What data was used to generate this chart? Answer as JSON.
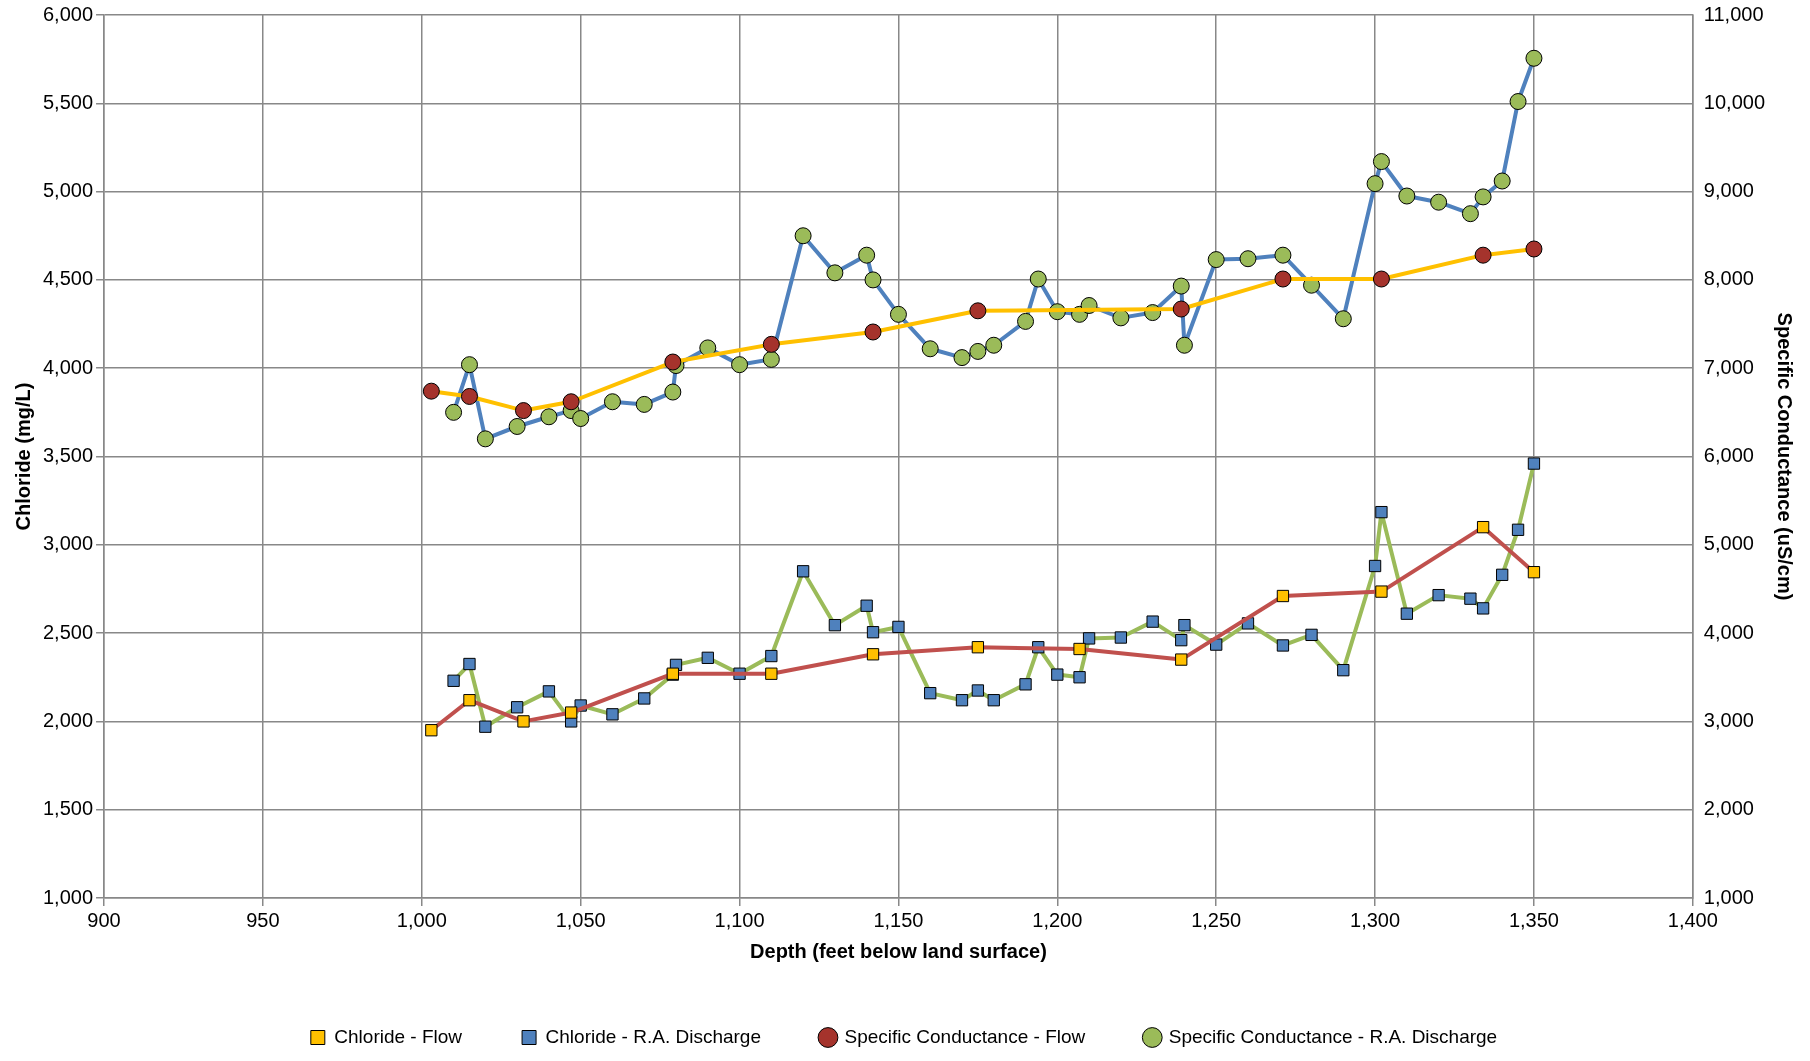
{
  "chart_data": {
    "type": "line",
    "xlabel": "Depth (feet below land surface)",
    "ylabel": "Chloride (mg/L)",
    "y2label": "Specific Conductance (uS/cm)",
    "xlim": [
      900,
      1400
    ],
    "xticks": [
      {
        "value": 900,
        "label": "900"
      },
      {
        "value": 950,
        "label": "950"
      },
      {
        "value": 1000,
        "label": "1,000"
      },
      {
        "value": 1050,
        "label": "1,050"
      },
      {
        "value": 1100,
        "label": "1,100"
      },
      {
        "value": 1150,
        "label": "1,150"
      },
      {
        "value": 1200,
        "label": "1,200"
      },
      {
        "value": 1250,
        "label": "1,250"
      },
      {
        "value": 1300,
        "label": "1,300"
      },
      {
        "value": 1350,
        "label": "1,350"
      },
      {
        "value": 1400,
        "label": "1,400"
      }
    ],
    "ylim": [
      1000,
      6000
    ],
    "yticks": [
      {
        "value": 1000,
        "label": "1,000"
      },
      {
        "value": 1500,
        "label": "1,500"
      },
      {
        "value": 2000,
        "label": "2,000"
      },
      {
        "value": 2500,
        "label": "2,500"
      },
      {
        "value": 3000,
        "label": "3,000"
      },
      {
        "value": 3500,
        "label": "3,500"
      },
      {
        "value": 4000,
        "label": "4,000"
      },
      {
        "value": 4500,
        "label": "4,500"
      },
      {
        "value": 5000,
        "label": "5,000"
      },
      {
        "value": 5500,
        "label": "5,500"
      },
      {
        "value": 6000,
        "label": "6,000"
      }
    ],
    "y2lim": [
      1000,
      11000
    ],
    "y2ticks": [
      {
        "value": 1000,
        "label": "1,000"
      },
      {
        "value": 2000,
        "label": "2,000"
      },
      {
        "value": 3000,
        "label": "3,000"
      },
      {
        "value": 4000,
        "label": "4,000"
      },
      {
        "value": 5000,
        "label": "5,000"
      },
      {
        "value": 6000,
        "label": "6,000"
      },
      {
        "value": 7000,
        "label": "7,000"
      },
      {
        "value": 8000,
        "label": "8,000"
      },
      {
        "value": 9000,
        "label": "9,000"
      },
      {
        "value": 10000,
        "label": "10,000"
      },
      {
        "value": 11000,
        "label": "11,000"
      }
    ],
    "grid": true,
    "legend": "bottom",
    "line_style": "solid",
    "series": [
      {
        "name": "Chloride - Flow",
        "color": "#c0504d",
        "colors": [
          "#ffc000",
          "#ffc000",
          "#ffc000",
          "#ffc000",
          "#ffc000",
          "#ffc000",
          "#ffc000",
          "#ffc000",
          "#ffc000",
          "#ffc000",
          "#ffc000",
          "#ffc000",
          "#ffc000",
          "#ffc000"
        ],
        "marker": "square",
        "x": [
          1003,
          1015,
          1032,
          1047,
          1079,
          1110,
          1142,
          1175,
          1207,
          1239,
          1271,
          1302,
          1334,
          1350
        ],
        "values": [
          1950,
          2120,
          2000,
          2050,
          2270,
          2270,
          2380,
          2420,
          2410,
          2350,
          2710,
          2735,
          3100,
          2845
        ]
      },
      {
        "name": "Chloride - R.A. Discharge",
        "color": "#9bbb59",
        "colors": [
          "#4f81bd",
          "#4f81bd",
          "#4f81bd",
          "#4f81bd",
          "#4f81bd",
          "#4f81bd",
          "#4f81bd",
          "#4f81bd",
          "#4f81bd",
          "#4f81bd",
          "#4f81bd",
          "#4f81bd",
          "#4f81bd",
          "#4f81bd",
          "#4f81bd",
          "#4f81bd",
          "#4f81bd",
          "#4f81bd",
          "#4f81bd",
          "#4f81bd",
          "#4f81bd",
          "#4f81bd",
          "#4f81bd",
          "#4f81bd",
          "#4f81bd",
          "#4f81bd",
          "#4f81bd",
          "#4f81bd",
          "#4f81bd",
          "#4f81bd",
          "#4f81bd",
          "#4f81bd",
          "#4f81bd",
          "#4f81bd",
          "#4f81bd",
          "#4f81bd",
          "#4f81bd",
          "#4f81bd",
          "#4f81bd",
          "#4f81bd",
          "#4f81bd",
          "#4f81bd",
          "#4f81bd",
          "#4f81bd",
          "#4f81bd",
          "#4f81bd"
        ],
        "marker": "square",
        "x": [
          1010,
          1015,
          1020,
          1030,
          1040,
          1047,
          1050,
          1060,
          1070,
          1079,
          1080,
          1090,
          1100,
          1110,
          1120,
          1130,
          1140,
          1142,
          1150,
          1160,
          1170,
          1175,
          1180,
          1190,
          1194,
          1200,
          1207,
          1210,
          1220,
          1230,
          1239,
          1240,
          1250,
          1260,
          1271,
          1280,
          1290,
          1300,
          1302,
          1310,
          1320,
          1330,
          1334,
          1340,
          1345,
          1350
        ],
        "values": [
          2230,
          2325,
          1970,
          2080,
          2170,
          2000,
          2090,
          2040,
          2130,
          2265,
          2320,
          2360,
          2270,
          2370,
          2850,
          2545,
          2655,
          2505,
          2535,
          2160,
          2120,
          2175,
          2120,
          2210,
          2420,
          2265,
          2250,
          2470,
          2475,
          2565,
          2460,
          2545,
          2435,
          2555,
          2430,
          2490,
          2290,
          2880,
          3185,
          2610,
          2715,
          2695,
          2640,
          2830,
          3085,
          3460
        ]
      },
      {
        "name": "Specific Conductance - Flow",
        "color": "#ffc000",
        "colors": [
          "#a5332c",
          "#a5332c",
          "#a5332c",
          "#a5332c",
          "#a5332c",
          "#a5332c",
          "#a5332c",
          "#a5332c",
          "#a5332c",
          "#a5332c",
          "#a5332c",
          "#a5332c",
          "#a5332c"
        ],
        "marker": "circle",
        "axis": "y2",
        "x": [
          1003,
          1015,
          1032,
          1047,
          1079,
          1110,
          1142,
          1175,
          1239,
          1271,
          1302,
          1334,
          1350
        ],
        "values": [
          6740,
          6680,
          6520,
          6620,
          7070,
          7270,
          7410,
          7650,
          7670,
          8010,
          8010,
          8280,
          8350
        ]
      },
      {
        "name": "Specific Conductance - R.A. Discharge",
        "color": "#4f81bd",
        "colors": [
          "#9bbb59",
          "#9bbb59",
          "#9bbb59",
          "#9bbb59",
          "#9bbb59",
          "#9bbb59",
          "#9bbb59",
          "#9bbb59",
          "#9bbb59",
          "#9bbb59",
          "#9bbb59",
          "#9bbb59",
          "#9bbb59",
          "#9bbb59",
          "#9bbb59",
          "#9bbb59",
          "#9bbb59",
          "#9bbb59",
          "#9bbb59",
          "#9bbb59",
          "#9bbb59",
          "#9bbb59",
          "#9bbb59",
          "#9bbb59",
          "#9bbb59",
          "#9bbb59",
          "#9bbb59",
          "#9bbb59",
          "#9bbb59",
          "#9bbb59",
          "#9bbb59",
          "#9bbb59",
          "#9bbb59",
          "#9bbb59",
          "#9bbb59",
          "#9bbb59",
          "#9bbb59",
          "#9bbb59",
          "#9bbb59",
          "#9bbb59",
          "#9bbb59",
          "#9bbb59",
          "#9bbb59",
          "#9bbb59",
          "#9bbb59",
          "#9bbb59"
        ],
        "marker": "circle",
        "axis": "y2",
        "x": [
          1010,
          1015,
          1020,
          1030,
          1040,
          1047,
          1050,
          1060,
          1070,
          1079,
          1080,
          1090,
          1100,
          1110,
          1120,
          1130,
          1140,
          1142,
          1150,
          1160,
          1170,
          1175,
          1180,
          1190,
          1194,
          1200,
          1207,
          1210,
          1220,
          1230,
          1239,
          1240,
          1250,
          1260,
          1271,
          1280,
          1290,
          1300,
          1302,
          1310,
          1320,
          1330,
          1334,
          1340,
          1345,
          1350
        ],
        "values": [
          6500,
          7040,
          6200,
          6340,
          6450,
          6520,
          6430,
          6620,
          6590,
          6730,
          7030,
          7230,
          7040,
          7100,
          8500,
          8080,
          8280,
          8000,
          7610,
          7220,
          7120,
          7190,
          7260,
          7530,
          8010,
          7640,
          7610,
          7710,
          7570,
          7630,
          7930,
          7260,
          8230,
          8240,
          8280,
          7940,
          7560,
          9090,
          9340,
          8950,
          8880,
          8750,
          8940,
          9120,
          10020,
          10510
        ]
      }
    ]
  }
}
